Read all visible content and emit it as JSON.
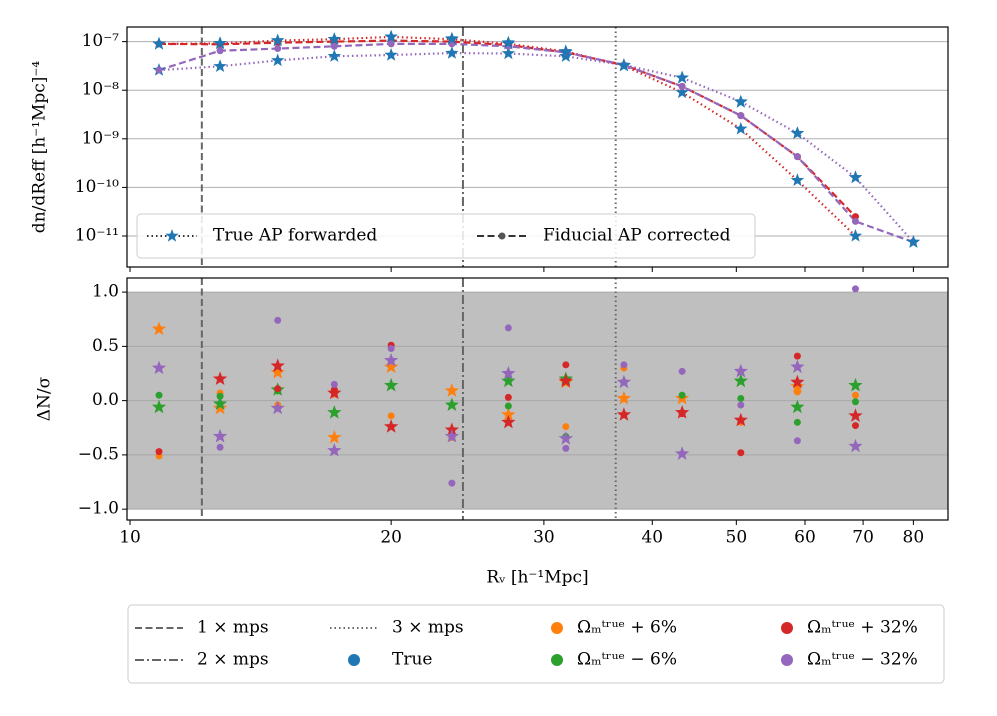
{
  "chart_data": [
    {
      "type": "line",
      "y_label": "dn/dReff [h⁻¹Mpc]⁻⁴",
      "yscale": "log",
      "x": [
        10.8,
        12.7,
        14.8,
        17.2,
        20,
        23.5,
        27.3,
        31.8,
        37.1,
        43.3,
        50.6,
        58.8,
        68.6,
        80
      ],
      "ylim": [
        2.3e-12,
        2e-07
      ],
      "yticks": [
        {
          "value": 1e-07,
          "label": "10⁻⁷"
        },
        {
          "value": 1e-08,
          "label": "10⁻⁸"
        },
        {
          "value": 1e-09,
          "label": "10⁻⁹"
        },
        {
          "value": 1e-10,
          "label": "10⁻¹⁰"
        },
        {
          "value": 1e-11,
          "label": "10⁻¹¹"
        }
      ],
      "grid": true,
      "legend": [
        {
          "label": "True AP forwarded",
          "line": "dotted",
          "marker": "star"
        },
        {
          "label": "Fiducial AP corrected",
          "line": "dashed",
          "marker": "dot"
        }
      ],
      "series": [
        {
          "color": "#d62728",
          "line": "dotted",
          "marker": "star",
          "marker_color": "#1f77b4",
          "values": [
            9e-08,
            9.2e-08,
            1.05e-07,
            1.12e-07,
            1.25e-07,
            1.12e-07,
            9e-08,
            6.3e-08,
            3.2e-08,
            9e-09,
            1.6e-09,
            1.4e-10,
            1e-11,
            null
          ]
        },
        {
          "color": "#9467bd",
          "line": "dotted",
          "marker": "star",
          "marker_color": "#1f77b4",
          "values": [
            2.6e-08,
            3.1e-08,
            4.1e-08,
            5e-08,
            5.3e-08,
            5.8e-08,
            5.7e-08,
            5e-08,
            3.3e-08,
            1.8e-08,
            5.8e-09,
            1.3e-09,
            1.6e-10,
            7.5e-12
          ]
        },
        {
          "color": "#d62728",
          "line": "dashed",
          "marker": "dot",
          "marker_color": "#d62728",
          "values": [
            9e-08,
            8.8e-08,
            9.5e-08,
            1e-07,
            1.05e-07,
            1e-07,
            8.5e-08,
            6e-08,
            3.3e-08,
            1.2e-08,
            3e-09,
            4.3e-10,
            2.5e-11,
            null
          ]
        },
        {
          "color": "#9467bd",
          "line": "dashed",
          "marker": "dot",
          "marker_color": "#9467bd",
          "values": [
            2.6e-08,
            6.5e-08,
            7.2e-08,
            8e-08,
            9e-08,
            9e-08,
            8e-08,
            6e-08,
            3.3e-08,
            1.2e-08,
            3e-09,
            4.3e-10,
            2e-11,
            7.5e-12
          ]
        },
        {
          "name": "True",
          "color": "#1f77b4",
          "marker": "star",
          "values": [
            9e-08,
            9.2e-08,
            1.05e-07,
            1.12e-07,
            1.25e-07,
            1.15e-07,
            9.5e-08,
            6e-08,
            3.2e-08,
            1.8e-08,
            5.7e-09,
            1.3e-09,
            1.6e-10,
            7.5e-12
          ]
        }
      ]
    },
    {
      "type": "scatter",
      "x_label": "Rᵥ [h⁻¹Mpc]",
      "y_label": "ΔN/σ",
      "x": [
        10.8,
        12.7,
        14.8,
        17.2,
        20,
        23.5,
        27.3,
        31.8,
        37.1,
        43.3,
        50.6,
        58.8,
        68.6,
        80
      ],
      "xscale": "log",
      "xlim": [
        9.92,
        87.7
      ],
      "xticks": [
        10,
        20,
        30,
        40,
        50,
        60,
        70,
        80
      ],
      "ylim": [
        -1.1,
        1.13
      ],
      "yticks": [
        {
          "value": -1,
          "label": "−1.0"
        },
        {
          "value": -0.5,
          "label": "−0.5"
        },
        {
          "value": 0,
          "label": "0.0"
        },
        0.5,
        {
          "value": 1,
          "label": "1.0"
        }
      ],
      "band": [
        -1,
        1
      ],
      "grid": true,
      "vlines": [
        {
          "name": "1 × mps",
          "x": 12.1,
          "line": "dashed"
        },
        {
          "name": "2 × mps",
          "x": 24.2,
          "line": "dashdot"
        },
        {
          "name": "3 × mps",
          "x": 36.3,
          "line": "dotted"
        }
      ],
      "series": [
        {
          "name": "Ωₘᵗʳᵘᵉ + 6%",
          "color": "#ff7f0e",
          "values": [
            0.66,
            -0.07,
            0.26,
            -0.34,
            0.31,
            0.09,
            -0.13,
            0.17,
            0.02,
            0.02,
            null,
            0.13,
            null,
            null
          ],
          "dot_values": [
            -0.51,
            0.07,
            -0.04,
            0.06,
            -0.14,
            -0.34,
            null,
            -0.24,
            0.3,
            null,
            -0.2,
            0.08,
            0.05,
            null
          ]
        },
        {
          "name": "Ωₘᵗʳᵘᵉ − 6%",
          "color": "#2ca02c",
          "values": [
            -0.06,
            -0.03,
            0.1,
            -0.11,
            0.14,
            -0.04,
            0.18,
            0.2,
            null,
            null,
            0.18,
            -0.06,
            0.14,
            null
          ],
          "dot_values": [
            0.05,
            0.04,
            0.09,
            null,
            null,
            null,
            -0.05,
            -0.33,
            0.17,
            0.05,
            0.02,
            -0.2,
            -0.01,
            null
          ]
        },
        {
          "name": "Ωₘᵗʳᵘᵉ + 32%",
          "color": "#d62728",
          "values": [
            null,
            0.2,
            0.32,
            0.07,
            -0.24,
            -0.27,
            -0.2,
            0.18,
            -0.13,
            -0.11,
            -0.18,
            0.17,
            -0.14,
            null
          ],
          "dot_values": [
            -0.47,
            null,
            0.11,
            0.1,
            0.51,
            null,
            0.03,
            0.33,
            null,
            -0.12,
            -0.48,
            0.41,
            -0.23,
            null
          ]
        },
        {
          "name": "Ωₘᵗʳᵘᵉ − 32%",
          "color": "#9467bd",
          "values": [
            0.3,
            -0.33,
            -0.07,
            -0.46,
            0.37,
            -0.33,
            0.25,
            -0.35,
            0.17,
            -0.49,
            0.27,
            0.31,
            -0.42,
            null
          ],
          "dot_values": [
            null,
            -0.43,
            0.74,
            0.15,
            0.48,
            -0.76,
            0.67,
            -0.44,
            0.33,
            0.27,
            -0.04,
            -0.37,
            1.03,
            null
          ]
        }
      ]
    }
  ]
}
